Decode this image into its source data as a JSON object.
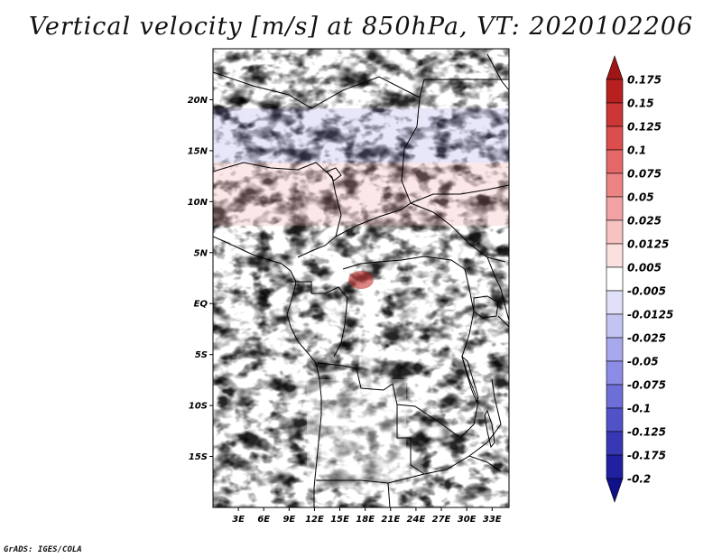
{
  "title": "Vertical velocity [m/s] at 850hPa, VT: 2020102206",
  "credit": "GrADS: IGES/COLA",
  "map": {
    "lon_range": [
      0,
      35
    ],
    "lat_range": [
      -20,
      25
    ],
    "lat_labels": [
      "20N",
      "15N",
      "10N",
      "5N",
      "EQ",
      "5S",
      "10S",
      "15S"
    ],
    "lat_values": [
      20,
      15,
      10,
      5,
      0,
      -5,
      -10,
      -15
    ],
    "lon_labels": [
      "3E",
      "6E",
      "9E",
      "12E",
      "15E",
      "18E",
      "21E",
      "24E",
      "27E",
      "30E",
      "33E"
    ],
    "lon_values": [
      3,
      6,
      9,
      12,
      15,
      18,
      21,
      24,
      27,
      30,
      33
    ]
  },
  "colorbar": {
    "labels": [
      "0.175",
      "0.15",
      "0.125",
      "0.1",
      "0.075",
      "0.05",
      "0.025",
      "0.0125",
      "0.005",
      "-0.005",
      "-0.0125",
      "-0.025",
      "-0.05",
      "-0.075",
      "-0.1",
      "-0.125",
      "-0.175",
      "-0.2"
    ],
    "colors": [
      "#a01616",
      "#b82020",
      "#cc3636",
      "#dc4e4e",
      "#e46868",
      "#ec8484",
      "#f2a2a2",
      "#f7c2c2",
      "#fbe0e0",
      "#ffffff",
      "#e0e0f8",
      "#c4c4f2",
      "#a8a8ec",
      "#8c8ce6",
      "#6e6ed8",
      "#5252c8",
      "#3838b4",
      "#2020a0",
      "#10108a"
    ]
  }
}
